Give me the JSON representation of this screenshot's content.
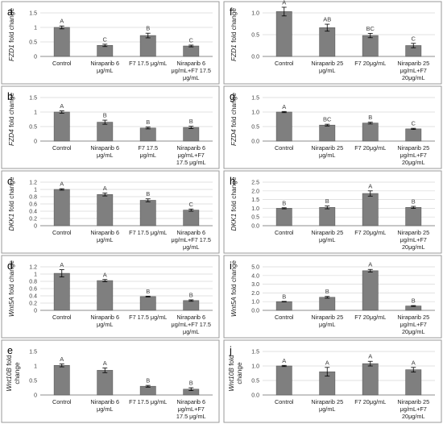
{
  "chart_data": [
    {
      "panel": "a",
      "type": "bar",
      "gene": "FZD1",
      "ylabel_suffix": " fold change",
      "categories": [
        [
          "Control"
        ],
        [
          "Niraparib 6",
          "μg/mL"
        ],
        [
          "F7 17.5 μg/mL"
        ],
        [
          "Niraparib 6",
          "μg/mL+F7 17.5",
          "μg/mL"
        ]
      ],
      "values": [
        1.0,
        0.38,
        0.72,
        0.36
      ],
      "errors": [
        0.05,
        0.04,
        0.08,
        0.03
      ],
      "letters": [
        "A",
        "C",
        "B",
        "C"
      ],
      "ylim": [
        0,
        1.5
      ],
      "yticks": [
        "0",
        "0.5",
        "1",
        "1.5"
      ],
      "gridlines": true
    },
    {
      "panel": "b",
      "type": "bar",
      "gene": "FZD4",
      "ylabel_suffix": " fold change",
      "categories": [
        [
          "Control"
        ],
        [
          "Niraparib 6",
          "μg/mL"
        ],
        [
          "F7 17.5",
          "μg/mL"
        ],
        [
          "Niraparib 6",
          "μg/mL+F7",
          "17.5 μg/mL"
        ]
      ],
      "values": [
        1.0,
        0.65,
        0.45,
        0.47
      ],
      "errors": [
        0.04,
        0.07,
        0.03,
        0.04
      ],
      "letters": [
        "A",
        "B",
        "B",
        "B"
      ],
      "ylim": [
        0,
        1.5
      ],
      "yticks": [
        "0",
        "0.5",
        "1",
        "1.5"
      ],
      "gridlines": true
    },
    {
      "panel": "c",
      "type": "bar",
      "gene": "DKK1",
      "ylabel_suffix": " fold change",
      "categories": [
        [
          "Control"
        ],
        [
          "Niraparib 6",
          "μg/mL"
        ],
        [
          "F7 17.5 μg/mL"
        ],
        [
          "Niraparib 6",
          "μg/mL+F7 17.5",
          "μg/mL"
        ]
      ],
      "values": [
        1.0,
        0.86,
        0.7,
        0.43
      ],
      "errors": [
        0.02,
        0.04,
        0.04,
        0.03
      ],
      "letters": [
        "A",
        "A",
        "B",
        "C"
      ],
      "ylim": [
        0,
        1.2
      ],
      "yticks": [
        "0",
        "0.2",
        "0.4",
        "0.6",
        "0.8",
        "1",
        "1.2"
      ],
      "gridlines": true
    },
    {
      "panel": "d",
      "type": "bar",
      "gene": "Wnt5A",
      "ylabel_suffix": " fold change",
      "categories": [
        [
          "Control"
        ],
        [
          "Niraparib 6",
          "μg/mL"
        ],
        [
          "F7 17.5 μg/mL"
        ],
        [
          "Niraparib 6",
          "μg/mL+F7 17.5",
          "μg/mL"
        ]
      ],
      "values": [
        1.02,
        0.82,
        0.38,
        0.27
      ],
      "errors": [
        0.1,
        0.03,
        0.01,
        0.02
      ],
      "letters": [
        "A",
        "A",
        "B",
        "B"
      ],
      "ylim": [
        0,
        1.2
      ],
      "yticks": [
        "0",
        "0.2",
        "0.4",
        "0.6",
        "0.8",
        "1",
        "1.2"
      ],
      "gridlines": true
    },
    {
      "panel": "e",
      "type": "bar",
      "gene": "Wnt10B",
      "ylabel_lines": [
        "Wnt10B fold",
        "change"
      ],
      "categories": [
        [
          "Control"
        ],
        [
          "Niraparib 6",
          "μg/mL"
        ],
        [
          "F7 17.5 μg/mL"
        ],
        [
          "Niraparib 6",
          "μg/mL+F7",
          "17.5 μg/mL"
        ]
      ],
      "values": [
        1.02,
        0.85,
        0.3,
        0.2
      ],
      "errors": [
        0.05,
        0.08,
        0.03,
        0.05
      ],
      "letters": [
        "A",
        "A",
        "B",
        "B"
      ],
      "ylim": [
        0,
        1.5
      ],
      "yticks": [
        "0",
        "0.5",
        "1",
        "1.5"
      ],
      "gridlines": false
    },
    {
      "panel": "f",
      "type": "bar",
      "gene": "FZD1",
      "ylabel_suffix": " fold change",
      "categories": [
        [
          "Control"
        ],
        [
          "Niraparib 25",
          "μg/mL"
        ],
        [
          "F7 20μg/mL"
        ],
        [
          "Niraparib 25",
          "μg/mL+F7",
          "20μg/mL"
        ]
      ],
      "values": [
        1.03,
        0.66,
        0.48,
        0.25
      ],
      "errors": [
        0.1,
        0.08,
        0.05,
        0.05
      ],
      "letters": [
        "A",
        "AB",
        "BC",
        "C"
      ],
      "ylim": [
        0,
        1.0
      ],
      "yticks": [
        "0.0",
        "0.5",
        "1.0"
      ],
      "gridlines": true
    },
    {
      "panel": "g",
      "type": "bar",
      "gene": "FZD4",
      "ylabel_suffix": " fold change",
      "categories": [
        [
          "Control"
        ],
        [
          "Niraparib 25",
          "μg/mL"
        ],
        [
          "F7 20μg/mL"
        ],
        [
          "Niraparib 25",
          "μg/mL+F7",
          "20μg/mL"
        ]
      ],
      "values": [
        1.0,
        0.55,
        0.62,
        0.42
      ],
      "errors": [
        0.02,
        0.03,
        0.03,
        0.02
      ],
      "letters": [
        "A",
        "BC",
        "B",
        "C"
      ],
      "ylim": [
        0,
        1.5
      ],
      "yticks": [
        "0.0",
        "0.5",
        "1.0",
        "1.5"
      ],
      "gridlines": true
    },
    {
      "panel": "h",
      "type": "bar",
      "gene": "DKK1",
      "ylabel_suffix": " fold change",
      "categories": [
        [
          "Control"
        ],
        [
          "Niraparib 25",
          "μg/mL"
        ],
        [
          "F7 20μg/mL"
        ],
        [
          "Niraparib 25",
          "μg/mL+F7",
          "20μg/mL"
        ]
      ],
      "values": [
        1.0,
        1.05,
        1.85,
        1.05
      ],
      "errors": [
        0.03,
        0.08,
        0.15,
        0.06
      ],
      "letters": [
        "B",
        "B",
        "A",
        "B"
      ],
      "ylim": [
        0,
        2.5
      ],
      "yticks": [
        "0.0",
        "0.5",
        "1.0",
        "1.5",
        "2.0",
        "2.5"
      ],
      "gridlines": true
    },
    {
      "panel": "i",
      "type": "bar",
      "gene": "Wnt5A",
      "ylabel_suffix": " fold change",
      "categories": [
        [
          "Control"
        ],
        [
          "Niraparib 25",
          "μg/mL"
        ],
        [
          "F7 20μg/mL"
        ],
        [
          "Niraparib 25",
          "μg/mL+F7",
          "20μg/mL"
        ]
      ],
      "values": [
        1.0,
        1.5,
        4.55,
        0.5
      ],
      "errors": [
        0.03,
        0.1,
        0.15,
        0.05
      ],
      "letters": [
        "B",
        "B",
        "A",
        "B"
      ],
      "ylim": [
        0,
        5.0
      ],
      "yticks": [
        "0.0",
        "1.0",
        "2.0",
        "3.0",
        "4.0",
        "5.0"
      ],
      "gridlines": true
    },
    {
      "panel": "j",
      "type": "bar",
      "gene": "Wnt10B",
      "ylabel_lines": [
        "Wnt10B fold",
        "change"
      ],
      "categories": [
        [
          "Control"
        ],
        [
          "Niraparib 25",
          "μg/mL"
        ],
        [
          "F7 20μg/mL"
        ],
        [
          "Niraparib 25",
          "μg/mL+F7",
          "20μg/mL"
        ]
      ],
      "values": [
        1.0,
        0.8,
        1.08,
        0.87
      ],
      "errors": [
        0.02,
        0.15,
        0.08,
        0.08
      ],
      "letters": [
        "A",
        "A",
        "A",
        "A"
      ],
      "ylim": [
        0,
        1.5
      ],
      "yticks": [
        "0.0",
        "0.5",
        "1.0",
        "1.5"
      ],
      "gridlines": true
    }
  ]
}
